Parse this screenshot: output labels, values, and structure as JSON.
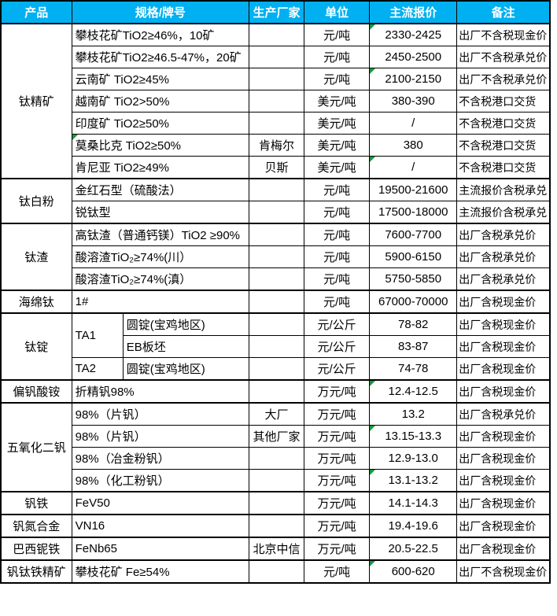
{
  "columns": [
    "产品",
    "规格/牌号",
    "生产厂家",
    "单位",
    "主流报价",
    "备注"
  ],
  "colors": {
    "header_bg": "#00B0F0",
    "header_text": "#FFFFFF",
    "border": "#000000",
    "comment_marker_green": "#149A3C"
  },
  "comment_markers": {
    "price_rows": [
      1,
      3,
      7,
      17,
      19,
      21,
      25
    ],
    "spec_rows": [
      6
    ]
  },
  "rows": [
    {
      "product": "钛精矿",
      "product_span": 7,
      "spec": "攀枝花矿TiO2≥46%，10矿",
      "maker": "",
      "unit": "元/吨",
      "price": "2330-2425",
      "note": "出厂不含税现金价"
    },
    {
      "spec": "攀枝花矿TiO2≥46.5-47%，20矿",
      "maker": "",
      "unit": "元/吨",
      "price": "2450-2500",
      "note": "出厂不含税承兑价"
    },
    {
      "spec": "云南矿 TiO2≥45%",
      "maker": "",
      "unit": "元/吨",
      "price": "2100-2150",
      "note": "出厂不含税承兑价"
    },
    {
      "spec": "越南矿 TiO2>50%",
      "maker": "",
      "unit": "美元/吨",
      "price": "380-390",
      "note": "不含税港口交货"
    },
    {
      "spec": "印度矿 TiO2≥50%",
      "maker": "",
      "unit": "美元/吨",
      "price": "/",
      "note": "不含税港口交货"
    },
    {
      "spec": "莫桑比克 TiO2≥50%",
      "maker": "肯梅尔",
      "unit": "美元/吨",
      "price": "380",
      "note": "不含税港口交货"
    },
    {
      "spec": "肯尼亚 TiO2≥49%",
      "maker": "贝斯",
      "unit": "美元/吨",
      "price": "/",
      "note": "不含税港口交货"
    },
    {
      "product": "钛白粉",
      "product_span": 2,
      "spec": "金红石型（硫酸法）",
      "maker": "",
      "unit": "元/吨",
      "price": "19500-21600",
      "note": "主流报价含税承兑"
    },
    {
      "spec": "锐钛型",
      "maker": "",
      "unit": "元/吨",
      "price": "17500-18000",
      "note": "主流报价含税承兑"
    },
    {
      "product": "钛渣",
      "product_span": 3,
      "spec": "高钛渣（普通钙镁）TiO2 ≥90%",
      "maker": "",
      "unit": "元/吨",
      "price": "7600-7700",
      "note": "出厂含税承兑价"
    },
    {
      "spec": "酸溶渣TiO₂≥74%(川）",
      "maker": "",
      "unit": "元/吨",
      "price": "5900-6150",
      "note": "出厂含税承兑价"
    },
    {
      "spec": "酸溶渣TiO₂≥74%(滇）",
      "maker": "",
      "unit": "元/吨",
      "price": "5750-5850",
      "note": "出厂含税承兑价"
    },
    {
      "product": "海绵钛",
      "product_span": 1,
      "spec": "1#",
      "maker": "",
      "unit": "元/吨",
      "price": "67000-70000",
      "note": "出厂含税现金价"
    },
    {
      "product": "钛锭",
      "product_span": 3,
      "grade": "TA1",
      "grade_span": 2,
      "spec": "圆锭(宝鸡地区)",
      "maker": "",
      "unit": "元/公斤",
      "price": "78-82",
      "note": "出厂含税现金价"
    },
    {
      "spec": "EB板坯",
      "maker": "",
      "unit": "元/公斤",
      "price": "83-87",
      "note": "出厂含税现金价"
    },
    {
      "grade": "TA2",
      "grade_span": 1,
      "spec": "圆锭(宝鸡地区)",
      "maker": "",
      "unit": "元/公斤",
      "price": "74-78",
      "note": "出厂含税现金价"
    },
    {
      "product": "偏钒酸铵",
      "product_span": 1,
      "spec": "折精钒98%",
      "maker": "",
      "unit": "万元/吨",
      "price": "12.4-12.5",
      "note": "出厂含税现金价"
    },
    {
      "product": "五氧化二钒",
      "product_span": 4,
      "spec": "98%（片钒）",
      "maker": "大厂",
      "unit": "万元/吨",
      "price": "13.2",
      "note": "出厂含税承兑价"
    },
    {
      "spec": "98%（片钒）",
      "maker": "其他厂家",
      "unit": "万元/吨",
      "price": "13.15-13.3",
      "note": "出厂含税现金价"
    },
    {
      "spec": "98%（冶金粉钒）",
      "maker": "",
      "unit": "万元/吨",
      "price": "12.9-13.0",
      "note": "出厂含税现金价"
    },
    {
      "spec": "98%（化工粉钒）",
      "maker": "",
      "unit": "万元/吨",
      "price": "13.1-13.2",
      "note": "出厂含税现金价"
    },
    {
      "product": "钒铁",
      "product_span": 1,
      "spec": "FeV50",
      "maker": "",
      "unit": "万元/吨",
      "price": "14.1-14.3",
      "note": "出厂含税现金价"
    },
    {
      "product": "钒氮合金",
      "product_span": 1,
      "spec": "VN16",
      "maker": "",
      "unit": "万元/吨",
      "price": "19.4-19.6",
      "note": "出厂含税现金价"
    },
    {
      "product": "巴西铌铁",
      "product_span": 1,
      "spec": "FeNb65",
      "maker": "北京中信",
      "unit": "万元/吨",
      "price": "20.5-22.5",
      "note": "出厂含税现金价"
    },
    {
      "product": "钒钛铁精矿",
      "product_span": 1,
      "spec": "攀枝花矿 Fe≥54%",
      "maker": "",
      "unit": "元/吨",
      "price": "600-620",
      "note": "出厂不含税现金价"
    }
  ]
}
